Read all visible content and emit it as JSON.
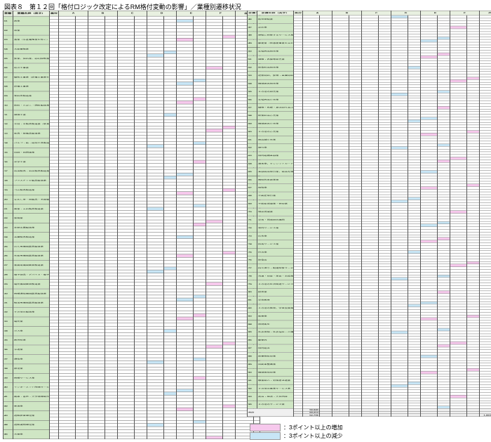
{
  "title": "図表８　第１２回「格付ロジック改定によるRM格付変動の影響」／業種別遷移状況",
  "headers": {
    "code": "業種コード",
    "name": "業種名称（英字）",
    "rating": "格付",
    "cols": [
      "A",
      "B",
      "C",
      "D",
      "E",
      "F",
      "合計"
    ]
  },
  "left_industries": [
    {
      "code": "01",
      "name": "農業"
    },
    {
      "code": "02",
      "name": "林業"
    },
    {
      "code": "03",
      "name": "漁業（水産養殖業を除く）"
    },
    {
      "code": "04",
      "name": "水産養殖業"
    },
    {
      "code": "05",
      "name": "鉱業，採石業，砂利採取業"
    },
    {
      "code": "06",
      "name": "総合工事業"
    },
    {
      "code": "07",
      "name": "職別工事業（設備工事業を除く）"
    },
    {
      "code": "08",
      "name": "設備工事業"
    },
    {
      "code": "09",
      "name": "食料品製造業"
    },
    {
      "code": "10",
      "name": "飲料・たばこ・飼料製造業"
    },
    {
      "code": "11",
      "name": "繊維工業"
    },
    {
      "code": "12",
      "name": "木材・木製品製造業（家具を除く）"
    },
    {
      "code": "13",
      "name": "家具・装備品製造業"
    },
    {
      "code": "14",
      "name": "パルプ・紙・紙加工品製造業"
    },
    {
      "code": "15",
      "name": "印刷・同関連業"
    },
    {
      "code": "16",
      "name": "化学工業"
    },
    {
      "code": "17",
      "name": "石油製品・石炭製品製造業"
    },
    {
      "code": "18",
      "name": "プラスチック製品製造業"
    },
    {
      "code": "19",
      "name": "ゴム製品製造業"
    },
    {
      "code": "20",
      "name": "なめし革・同製品・毛皮製造業"
    },
    {
      "code": "21",
      "name": "窯業・土石製品製造業"
    },
    {
      "code": "22",
      "name": "鉄鋼業"
    },
    {
      "code": "23",
      "name": "非鉄金属製造業"
    },
    {
      "code": "24",
      "name": "金属製品製造業"
    },
    {
      "code": "25",
      "name": "はん用機械器具製造業"
    },
    {
      "code": "26",
      "name": "生産用機械器具製造業"
    },
    {
      "code": "27",
      "name": "業務用機械器具製造業"
    },
    {
      "code": "28",
      "name": "電子部品・デバイス・電子回路製造業"
    },
    {
      "code": "29",
      "name": "電気機械器具製造業"
    },
    {
      "code": "30",
      "name": "情報通信機械器具製造業"
    },
    {
      "code": "31",
      "name": "輸送用機械器具製造業"
    },
    {
      "code": "32",
      "name": "その他の製造業"
    },
    {
      "code": "33",
      "name": "電気業"
    },
    {
      "code": "34",
      "name": "ガス業"
    },
    {
      "code": "35",
      "name": "熱供給業"
    },
    {
      "code": "36",
      "name": "水道業"
    },
    {
      "code": "37",
      "name": "通信業"
    },
    {
      "code": "38",
      "name": "放送業"
    },
    {
      "code": "39",
      "name": "情報サービス業"
    },
    {
      "code": "40",
      "name": "インターネット附随サービス業"
    },
    {
      "code": "41",
      "name": "映像・音声・文字情報制作業"
    },
    {
      "code": "42",
      "name": "鉄道業"
    },
    {
      "code": "43",
      "name": "道路旅客運送業"
    },
    {
      "code": "44",
      "name": "道路貨物運送業"
    },
    {
      "code": "45",
      "name": "水運業"
    }
  ],
  "right_industries": [
    {
      "code": "46",
      "name": "航空運輸業"
    },
    {
      "code": "47",
      "name": "倉庫業"
    },
    {
      "code": "48",
      "name": "運輸に附帯するサービス業"
    },
    {
      "code": "49",
      "name": "郵便業（信書便事業を含む）"
    },
    {
      "code": "50",
      "name": "各種商品卸売業"
    },
    {
      "code": "51",
      "name": "繊維・衣服等卸売業"
    },
    {
      "code": "52",
      "name": "飲食料品卸売業"
    },
    {
      "code": "53",
      "name": "建築材料，鉱物・金属材料等卸売業"
    },
    {
      "code": "54",
      "name": "機械器具卸売業"
    },
    {
      "code": "55",
      "name": "その他の卸売業"
    },
    {
      "code": "56",
      "name": "各種商品小売業"
    },
    {
      "code": "57",
      "name": "織物・衣服・身の回り品小売業"
    },
    {
      "code": "58",
      "name": "飲食料品小売業"
    },
    {
      "code": "59",
      "name": "機械器具小売業"
    },
    {
      "code": "60",
      "name": "その他の小売業"
    },
    {
      "code": "61",
      "name": "無店舗小売業"
    },
    {
      "code": "62",
      "name": "銀行業"
    },
    {
      "code": "63",
      "name": "協同組織金融業"
    },
    {
      "code": "64",
      "name": "貸金業，クレジットカード業等非預金信用機関"
    },
    {
      "code": "65",
      "name": "金融商品取引業，商品先物取引業"
    },
    {
      "code": "66",
      "name": "補助的金融業等"
    },
    {
      "code": "67",
      "name": "保険業"
    },
    {
      "code": "68",
      "name": "不動産取引業"
    },
    {
      "code": "69",
      "name": "不動産賃貸業・管理業"
    },
    {
      "code": "70",
      "name": "物品賃貸業"
    },
    {
      "code": "71",
      "name": "学術・開発研究機関"
    },
    {
      "code": "72",
      "name": "専門サービス業"
    },
    {
      "code": "73",
      "name": "広告業"
    },
    {
      "code": "74",
      "name": "技術サービス業"
    },
    {
      "code": "75",
      "name": "宿泊業"
    },
    {
      "code": "76",
      "name": "飲食店"
    },
    {
      "code": "77",
      "name": "持ち帰り・配達飲食サービス業"
    },
    {
      "code": "78",
      "name": "洗濯・理容・美容・浴場業"
    },
    {
      "code": "79",
      "name": "その他の生活関連サービス業"
    },
    {
      "code": "80",
      "name": "娯楽業"
    },
    {
      "code": "81",
      "name": "学校教育"
    },
    {
      "code": "82",
      "name": "その他の教育，学習支援業"
    },
    {
      "code": "83",
      "name": "医療業"
    },
    {
      "code": "84",
      "name": "保健衛生"
    },
    {
      "code": "85",
      "name": "社会保険・社会福祉・介護事業"
    },
    {
      "code": "86",
      "name": "郵便局"
    },
    {
      "code": "87",
      "name": "協同組合"
    },
    {
      "code": "88",
      "name": "廃棄物処理業"
    },
    {
      "code": "89",
      "name": "自動車整備業"
    },
    {
      "code": "90",
      "name": "機械等修理業"
    },
    {
      "code": "91",
      "name": "職業紹介・労働者派遣業"
    },
    {
      "code": "92",
      "name": "その他の事業サービス業"
    },
    {
      "code": "93",
      "name": "政治・経済・文化団体"
    },
    {
      "code": "95",
      "name": "その他のサービス業"
    }
  ],
  "total_label": "合計",
  "totals": {
    "a": [
      "58,840",
      "59,213",
      "52,795"
    ],
    "sum": "1,569,183"
  },
  "legend": {
    "increase": "：3ポイント以上の増加",
    "decrease": "：3ポイント以上の減少",
    "increase_color": "#f6c8ec",
    "decrease_color": "#c8e6f6"
  }
}
